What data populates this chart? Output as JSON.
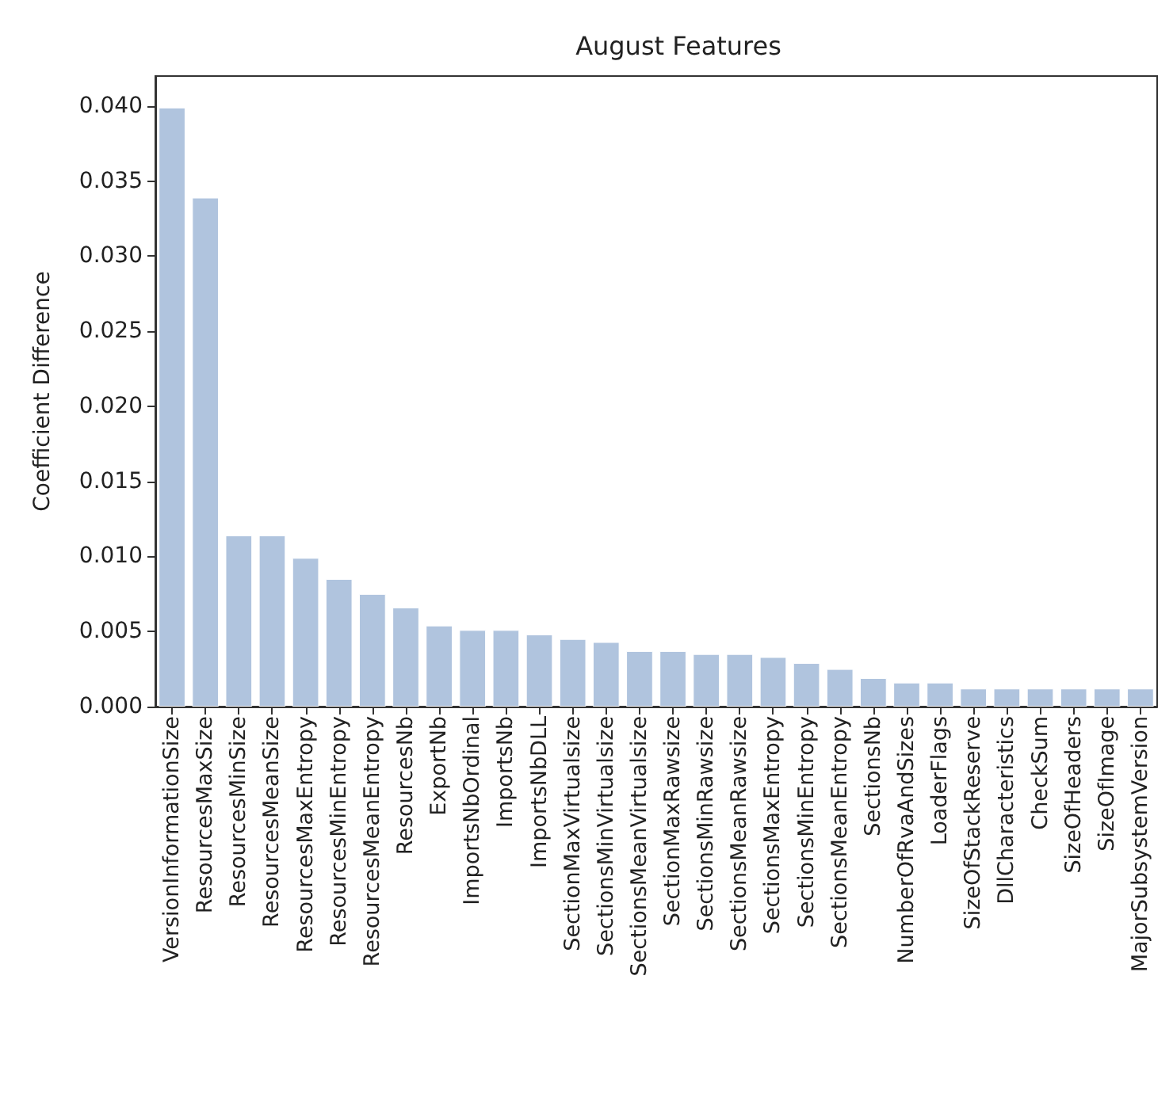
{
  "chart_data": {
    "type": "bar",
    "title": "August Features",
    "ylabel": "Coefficient Difference",
    "categories": [
      "VersionInformationSize",
      "ResourcesMaxSize",
      "ResourcesMinSize",
      "ResourcesMeanSize",
      "ResourcesMaxEntropy",
      "ResourcesMinEntropy",
      "ResourcesMeanEntropy",
      "ResourcesNb",
      "ExportNb",
      "ImportsNbOrdinal",
      "ImportsNb",
      "ImportsNbDLL",
      "SectionMaxVirtualsize",
      "SectionsMinVirtualsize",
      "SectionsMeanVirtualsize",
      "SectionMaxRawsize",
      "SectionsMinRawsize",
      "SectionsMeanRawsize",
      "SectionsMaxEntropy",
      "SectionsMinEntropy",
      "SectionsMeanEntropy",
      "SectionsNb",
      "NumberOfRvaAndSizes",
      "LoaderFlags",
      "SizeOfStackReserve",
      "DllCharacteristics",
      "CheckSum",
      "SizeOfHeaders",
      "SizeOfImage",
      "MajorSubsystemVersion"
    ],
    "values": [
      0.0399,
      0.0339,
      0.0114,
      0.0114,
      0.0099,
      0.0085,
      0.0075,
      0.0066,
      0.0054,
      0.0051,
      0.0051,
      0.0048,
      0.0045,
      0.0043,
      0.0037,
      0.0037,
      0.0035,
      0.0035,
      0.0033,
      0.0029,
      0.0025,
      0.0019,
      0.0016,
      0.0016,
      0.0012,
      0.0012,
      0.0012,
      0.0012,
      0.0012,
      0.0012
    ],
    "color": "#b0c4de",
    "ylim": [
      0,
      0.042
    ],
    "yticks": [
      {
        "value": 0,
        "label": "0.000"
      },
      {
        "value": 0.005,
        "label": "0.005"
      },
      {
        "value": 0.01,
        "label": "0.010"
      },
      {
        "value": 0.015,
        "label": "0.015"
      },
      {
        "value": 0.02,
        "label": "0.020"
      },
      {
        "value": 0.025,
        "label": "0.025"
      },
      {
        "value": 0.03,
        "label": "0.030"
      },
      {
        "value": 0.035,
        "label": "0.035"
      },
      {
        "value": 0.04,
        "label": "0.040"
      }
    ],
    "grid": false
  }
}
